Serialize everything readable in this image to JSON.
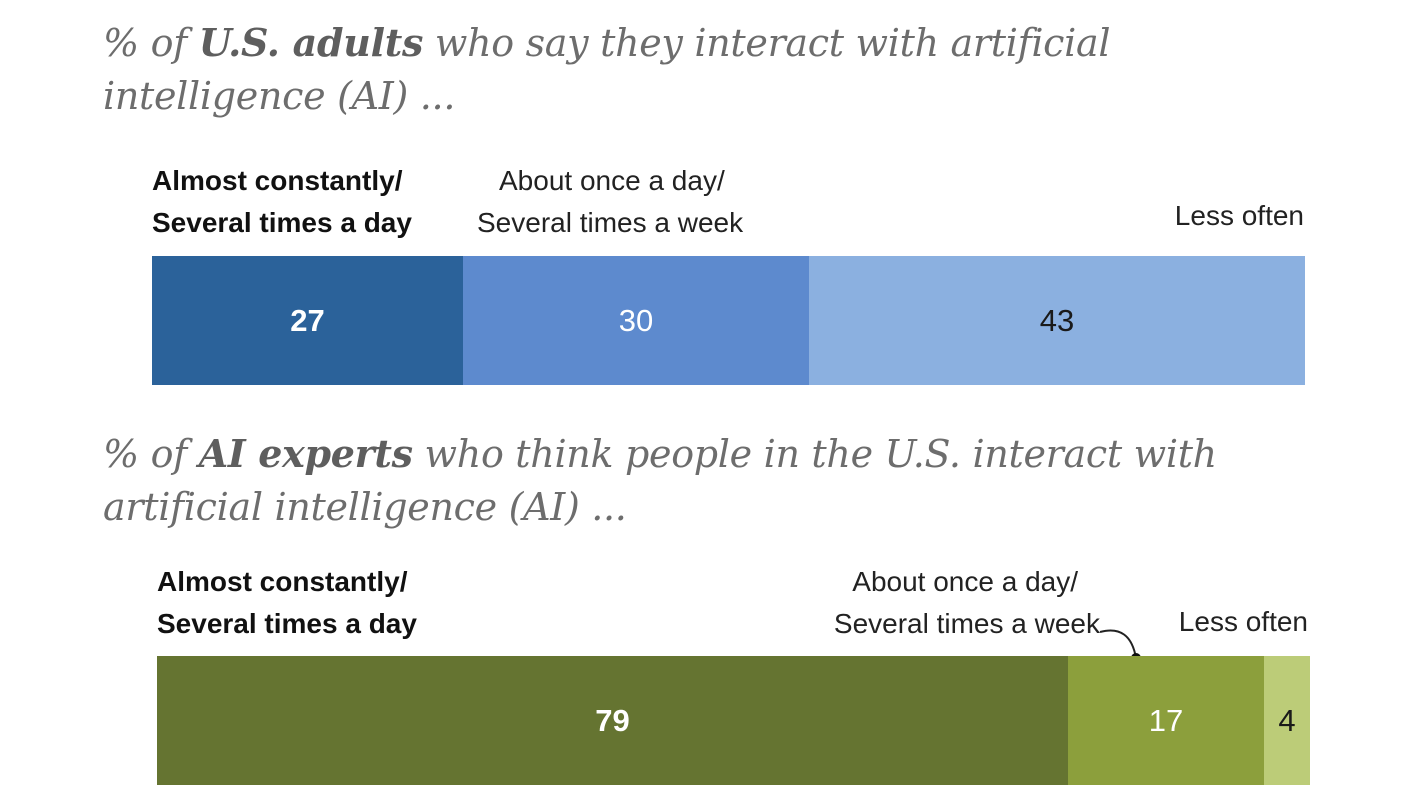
{
  "chart_data": [
    {
      "type": "bar",
      "orientation": "horizontal-stacked",
      "title_prefix": "% of ",
      "title_bold": "U.S. adults",
      "title_line1_rest": " who say they interact with artificial",
      "title_line2": "intelligence (AI) ...",
      "categories": [
        {
          "label_line1": "Almost constantly/",
          "label_line2": "Several times a day"
        },
        {
          "label_line1": "About once a day/",
          "label_line2": "Several times a week"
        },
        {
          "label_line1": "Less often",
          "label_line2": ""
        }
      ],
      "values": [
        "27",
        "30",
        "43"
      ],
      "colors": [
        "#2b629a",
        "#5d8ace",
        "#8bb0e0"
      ],
      "value_colors": [
        "#ffffff",
        "#ffffff",
        "#1a1a1a"
      ],
      "xlim": [
        0,
        100
      ]
    },
    {
      "type": "bar",
      "orientation": "horizontal-stacked",
      "title_prefix": "% of ",
      "title_bold": "AI experts",
      "title_line1_rest": " who think people in the U.S. interact with",
      "title_line2": "artificial intelligence (AI) ...",
      "categories": [
        {
          "label_line1": "Almost constantly/",
          "label_line2": "Several times a day"
        },
        {
          "label_line1": "About once a day/",
          "label_line2": "Several times a week"
        },
        {
          "label_line1": "Less often",
          "label_line2": ""
        }
      ],
      "values": [
        "79",
        "17",
        "4"
      ],
      "colors": [
        "#657431",
        "#8c9f3c",
        "#bccc78"
      ],
      "value_colors": [
        "#ffffff",
        "#ffffff",
        "#1a1a1a"
      ],
      "xlim": [
        0,
        100
      ]
    }
  ]
}
